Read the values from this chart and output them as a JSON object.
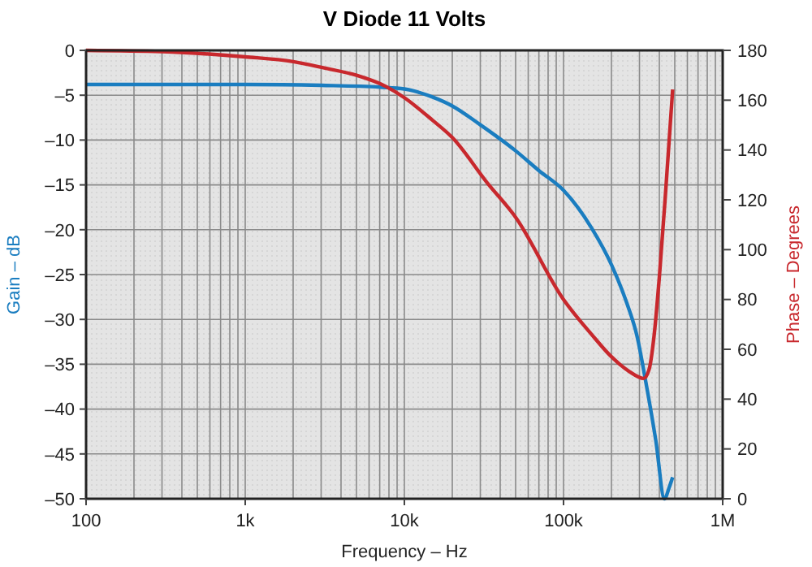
{
  "chart_data": {
    "type": "line",
    "title": "V Diode 11 Volts",
    "xlabel": "Frequency – Hz",
    "ylabel": "Gain – dB",
    "y2label": "Phase – Degrees",
    "log": "x",
    "grid": true,
    "line_style": "solid",
    "marker": "none",
    "xlim": [
      100,
      1000000
    ],
    "xticks": [
      {
        "value": 100,
        "label": "100"
      },
      {
        "value": 200,
        "label": null
      },
      {
        "value": 300,
        "label": null
      },
      {
        "value": 400,
        "label": null
      },
      {
        "value": 500,
        "label": null
      },
      {
        "value": 600,
        "label": null
      },
      {
        "value": 700,
        "label": null
      },
      {
        "value": 800,
        "label": null
      },
      {
        "value": 900,
        "label": null
      },
      {
        "value": 1000,
        "label": "1k"
      },
      {
        "value": 2000,
        "label": null
      },
      {
        "value": 3000,
        "label": null
      },
      {
        "value": 4000,
        "label": null
      },
      {
        "value": 5000,
        "label": null
      },
      {
        "value": 6000,
        "label": null
      },
      {
        "value": 7000,
        "label": null
      },
      {
        "value": 8000,
        "label": null
      },
      {
        "value": 9000,
        "label": null
      },
      {
        "value": 10000,
        "label": "10k"
      },
      {
        "value": 20000,
        "label": null
      },
      {
        "value": 30000,
        "label": null
      },
      {
        "value": 40000,
        "label": null
      },
      {
        "value": 50000,
        "label": null
      },
      {
        "value": 60000,
        "label": null
      },
      {
        "value": 70000,
        "label": null
      },
      {
        "value": 80000,
        "label": null
      },
      {
        "value": 90000,
        "label": null
      },
      {
        "value": 100000,
        "label": "100k"
      },
      {
        "value": 200000,
        "label": null
      },
      {
        "value": 300000,
        "label": null
      },
      {
        "value": 400000,
        "label": null
      },
      {
        "value": 500000,
        "label": null
      },
      {
        "value": 600000,
        "label": null
      },
      {
        "value": 700000,
        "label": null
      },
      {
        "value": 800000,
        "label": null
      },
      {
        "value": 900000,
        "label": null
      },
      {
        "value": 1000000,
        "label": "1M"
      }
    ],
    "ylim": [
      -50,
      0
    ],
    "yticks": [
      0,
      {
        "value": -5,
        "label": "–5"
      },
      {
        "value": -10,
        "label": "–10"
      },
      {
        "value": -15,
        "label": "–15"
      },
      {
        "value": -20,
        "label": "–20"
      },
      {
        "value": -25,
        "label": "–25"
      },
      {
        "value": -30,
        "label": "–30"
      },
      {
        "value": -35,
        "label": "–35"
      },
      {
        "value": -40,
        "label": "–40"
      },
      {
        "value": -45,
        "label": "–45"
      },
      {
        "value": -50,
        "label": "–50"
      }
    ],
    "y2lim": [
      0,
      180
    ],
    "y2ticks": [
      0,
      20,
      40,
      60,
      80,
      100,
      120,
      140,
      160,
      180
    ],
    "series": [
      {
        "color": "#1a7dc0",
        "x": [
          100,
          1000,
          3000,
          7000,
          10000,
          15000,
          20000,
          30000,
          50000,
          70000,
          100000,
          150000,
          200000,
          250000,
          290000,
          326000,
          380000,
          431000,
          460000,
          485000
        ],
        "values": [
          -3.8,
          -3.8,
          -3.9,
          -4.1,
          -4.3,
          -5.2,
          -6.2,
          -8.3,
          -11.2,
          -13.4,
          -15.6,
          -19.8,
          -23.9,
          -28.2,
          -31.9,
          -36.6,
          -43.5,
          -50,
          -48.8,
          -47.6
        ]
      },
      {
        "color": "#c8282d",
        "axis": "y2",
        "x": [
          100,
          300,
          1000,
          2000,
          3100,
          5000,
          7600,
          10000,
          15000,
          20000,
          33000,
          50000,
          100000,
          150000,
          200000,
          260000,
          318000,
          345000,
          370000,
          400000,
          440000,
          485000
        ],
        "values": [
          180,
          179.5,
          177.4,
          175.5,
          173,
          170,
          165.6,
          161,
          152,
          145,
          127,
          113,
          80,
          66,
          57,
          51,
          48.3,
          52,
          65,
          89,
          125,
          164.3
        ]
      }
    ]
  }
}
